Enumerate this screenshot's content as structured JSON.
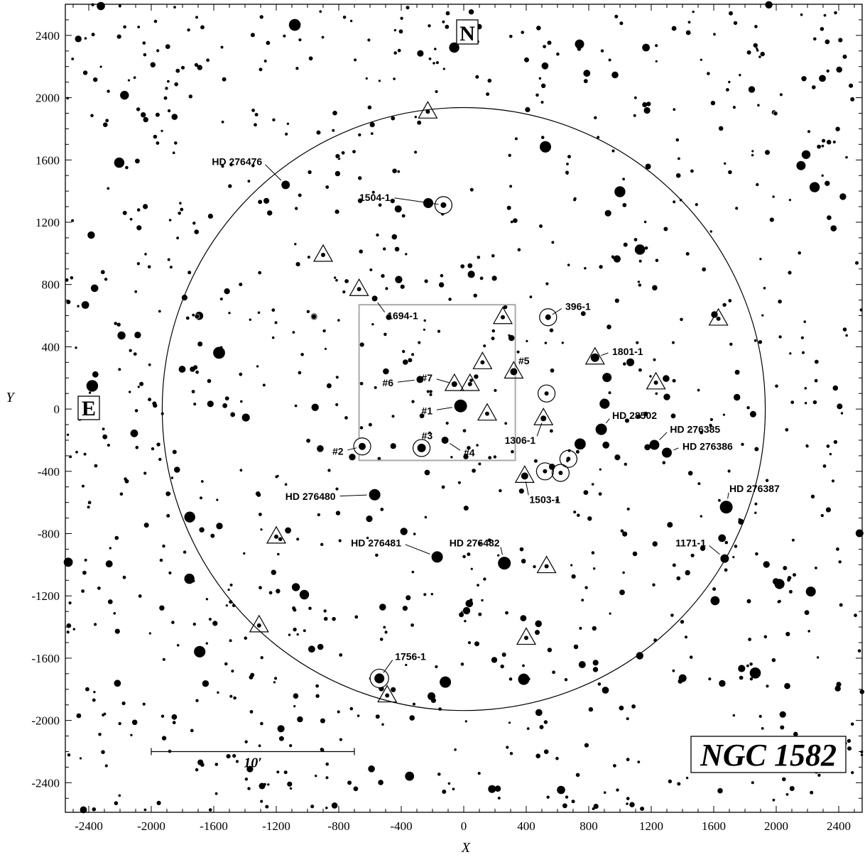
{
  "chart_data": {
    "type": "scatter",
    "title": "NGC 1582",
    "xlabel": "X",
    "ylabel": "Y",
    "xlim": [
      -2550,
      2550
    ],
    "ylim": [
      -2590,
      2600
    ],
    "x_ticks": [
      -2400,
      -2000,
      -1600,
      -1200,
      -800,
      -400,
      0,
      400,
      800,
      1200,
      1600,
      2000,
      2400
    ],
    "y_ticks": [
      -2400,
      -2000,
      -1600,
      -1200,
      -800,
      -400,
      0,
      400,
      800,
      1200,
      1600,
      2000,
      2400
    ],
    "compass": {
      "north": "N",
      "east": "E"
    },
    "scale_bar": {
      "label": "10′",
      "x_from": -2000,
      "x_to": -700,
      "y": -2200
    },
    "cluster_circle": {
      "cx": 0,
      "cy": 0,
      "r": 1930
    },
    "inner_box": {
      "x_from": -670,
      "x_to": 330,
      "y_from": -330,
      "y_to": 670
    },
    "labeled_stars": [
      {
        "label": "HD 276476",
        "x": -1140,
        "y": 1440,
        "size": 6,
        "lx": -1290,
        "ly": 1590
      },
      {
        "label": "1504-1",
        "x": -130,
        "y": 1310,
        "size": 4,
        "lx": -470,
        "ly": 1360,
        "marker": "circle"
      },
      {
        "label": "1694-1",
        "x": -570,
        "y": 710,
        "size": 4,
        "lx": -490,
        "ly": 600
      },
      {
        "label": "396-1",
        "x": 540,
        "y": 590,
        "size": 4,
        "lx": 650,
        "ly": 660,
        "marker": "circle"
      },
      {
        "label": "1801-1",
        "x": 840,
        "y": 330,
        "size": 6,
        "lx": 950,
        "ly": 370,
        "marker": "triangle"
      },
      {
        "label": "#5",
        "x": 320,
        "y": 240,
        "size": 5,
        "lx": 350,
        "ly": 310,
        "marker": "triangle"
      },
      {
        "label": "#7",
        "x": -60,
        "y": 160,
        "size": 4,
        "lx": -200,
        "ly": 200,
        "marker": "triangle"
      },
      {
        "label": "#6",
        "x": -280,
        "y": 190,
        "size": 5,
        "lx": -450,
        "ly": 170
      },
      {
        "label": "#1",
        "x": -20,
        "y": 20,
        "size": 9,
        "lx": -200,
        "ly": -10
      },
      {
        "label": "1306-1",
        "x": 510,
        "y": -60,
        "size": 4,
        "lx": 460,
        "ly": -200,
        "marker": "triangle"
      },
      {
        "label": "HD 28502",
        "x": 880,
        "y": -130,
        "size": 8,
        "lx": 950,
        "ly": -40
      },
      {
        "label": "HD 276385",
        "x": 1220,
        "y": -230,
        "size": 7,
        "lx": 1320,
        "ly": -130
      },
      {
        "label": "HD 276386",
        "x": 1300,
        "y": -280,
        "size": 7,
        "lx": 1400,
        "ly": -240
      },
      {
        "label": "#2",
        "x": -650,
        "y": -240,
        "size": 5,
        "lx": -770,
        "ly": -270,
        "marker": "circle"
      },
      {
        "label": "#3",
        "x": -270,
        "y": -250,
        "size": 6,
        "lx": -270,
        "ly": -170,
        "marker": "circle"
      },
      {
        "label": "#4",
        "x": -120,
        "y": -200,
        "size": 5,
        "lx": 0,
        "ly": -280
      },
      {
        "label": "1503-1",
        "x": 390,
        "y": -430,
        "size": 5,
        "lx": 420,
        "ly": -580,
        "marker": "triangle"
      },
      {
        "label": "HD 276480",
        "x": -570,
        "y": -550,
        "size": 8,
        "lx": -820,
        "ly": -560
      },
      {
        "label": "HD 276387",
        "x": 1680,
        "y": -630,
        "size": 9,
        "lx": 1700,
        "ly": -510
      },
      {
        "label": "HD 276481",
        "x": -170,
        "y": -950,
        "size": 8,
        "lx": -400,
        "ly": -860
      },
      {
        "label": "HD 276482",
        "x": 260,
        "y": -990,
        "size": 9,
        "lx": 230,
        "ly": -860
      },
      {
        "label": "1171-1",
        "x": 1670,
        "y": -960,
        "size": 6,
        "lx": 1550,
        "ly": -860
      },
      {
        "label": "1756-1",
        "x": -540,
        "y": -1730,
        "size": 7,
        "lx": -440,
        "ly": -1590,
        "marker": "circle"
      }
    ],
    "circle_markers": [
      {
        "x": 530,
        "y": 100
      },
      {
        "x": 520,
        "y": -400
      },
      {
        "x": 670,
        "y": -320
      },
      {
        "x": 620,
        "y": -410
      }
    ],
    "triangle_markers": [
      {
        "x": -230,
        "y": 1910
      },
      {
        "x": -900,
        "y": 990
      },
      {
        "x": -670,
        "y": 770
      },
      {
        "x": 250,
        "y": 590
      },
      {
        "x": 1630,
        "y": 580
      },
      {
        "x": 1230,
        "y": 170
      },
      {
        "x": 40,
        "y": 160
      },
      {
        "x": 120,
        "y": 300
      },
      {
        "x": 150,
        "y": -30
      },
      {
        "x": -1200,
        "y": -820
      },
      {
        "x": 530,
        "y": -1010
      },
      {
        "x": -1310,
        "y": -1390
      },
      {
        "x": 400,
        "y": -1470
      },
      {
        "x": -490,
        "y": -1840
      }
    ],
    "field_stars": {
      "count": 1050,
      "seed": 1582
    }
  }
}
